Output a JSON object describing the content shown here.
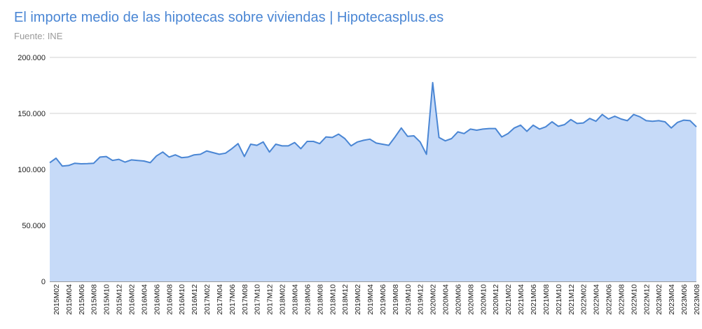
{
  "chart_data": {
    "type": "area",
    "title": "El importe medio de las hipotecas sobre viviendas | Hipotecasplus.es",
    "subtitle": "Fuente: INE",
    "xlabel": "",
    "ylabel": "",
    "ylim": [
      0,
      200000
    ],
    "grid": true,
    "legend": "none",
    "colors": {
      "title": "#4a86d4",
      "line": "#4a86d4",
      "fill": "#c6daf8",
      "grid": "#d0d0d0",
      "subtitle": "#9a9a9a"
    },
    "y_ticks": [
      "0",
      "50.000",
      "100.000",
      "150.000",
      "200.000"
    ],
    "y_tick_values": [
      0,
      50000,
      100000,
      150000,
      200000
    ],
    "x_tick_labels": [
      "2015M02",
      "2015M04",
      "2015M06",
      "2015M08",
      "2015M10",
      "2015M12",
      "2016M02",
      "2016M04",
      "2016M06",
      "2016M08",
      "2016M10",
      "2016M12",
      "2017M02",
      "2017M04",
      "2017M06",
      "2017M08",
      "2017M10",
      "2017M12",
      "2018M02",
      "2018M04",
      "2018M06",
      "2018M08",
      "2018M10",
      "2018M12",
      "2019M02",
      "2019M04",
      "2019M06",
      "2019M08",
      "2019M10",
      "2019M12",
      "2020M02",
      "2020M04",
      "2020M06",
      "2020M08",
      "2020M10",
      "2020M12",
      "2021M02",
      "2021M04",
      "2021M06",
      "2021M08",
      "2021M10",
      "2021M12",
      "2022M02",
      "2022M04",
      "2022M06",
      "2022M08",
      "2022M10",
      "2022M12",
      "2023M02",
      "2023M04",
      "2023M06",
      "2023M08"
    ],
    "x": [
      "2015M01",
      "2015M02",
      "2015M03",
      "2015M04",
      "2015M05",
      "2015M06",
      "2015M07",
      "2015M08",
      "2015M09",
      "2015M10",
      "2015M11",
      "2015M12",
      "2016M01",
      "2016M02",
      "2016M03",
      "2016M04",
      "2016M05",
      "2016M06",
      "2016M07",
      "2016M08",
      "2016M09",
      "2016M10",
      "2016M11",
      "2016M12",
      "2017M01",
      "2017M02",
      "2017M03",
      "2017M04",
      "2017M05",
      "2017M06",
      "2017M07",
      "2017M08",
      "2017M09",
      "2017M10",
      "2017M11",
      "2017M12",
      "2018M01",
      "2018M02",
      "2018M03",
      "2018M04",
      "2018M05",
      "2018M06",
      "2018M07",
      "2018M08",
      "2018M09",
      "2018M10",
      "2018M11",
      "2018M12",
      "2019M01",
      "2019M02",
      "2019M03",
      "2019M04",
      "2019M05",
      "2019M06",
      "2019M07",
      "2019M08",
      "2019M09",
      "2019M10",
      "2019M11",
      "2019M12",
      "2020M01",
      "2020M02",
      "2020M03",
      "2020M04",
      "2020M05",
      "2020M06",
      "2020M07",
      "2020M08",
      "2020M09",
      "2020M10",
      "2020M11",
      "2020M12",
      "2021M01",
      "2021M02",
      "2021M03",
      "2021M04",
      "2021M05",
      "2021M06",
      "2021M07",
      "2021M08",
      "2021M09",
      "2021M10",
      "2021M11",
      "2021M12",
      "2022M01",
      "2022M02",
      "2022M03",
      "2022M04",
      "2022M05",
      "2022M06",
      "2022M07",
      "2022M08",
      "2022M09",
      "2022M10",
      "2022M11",
      "2022M12",
      "2023M01",
      "2023M02",
      "2023M03",
      "2023M04",
      "2023M05",
      "2023M06",
      "2023M07",
      "2023M08"
    ],
    "series": [
      {
        "values": [
          106000,
          110000,
          103000,
          103500,
          105500,
          105000,
          105200,
          105500,
          111000,
          111500,
          108000,
          109000,
          106500,
          108500,
          108000,
          107500,
          106000,
          112000,
          115500,
          111000,
          113000,
          110500,
          111000,
          113000,
          113500,
          116500,
          115000,
          113500,
          114500,
          118500,
          123000,
          111500,
          122500,
          121500,
          124500,
          115500,
          122500,
          121000,
          121000,
          124000,
          118500,
          125000,
          125000,
          123000,
          129000,
          128500,
          131500,
          127500,
          121000,
          124500,
          126000,
          127000,
          123500,
          122500,
          121500,
          129000,
          137000,
          129500,
          130000,
          124500,
          113500,
          177500,
          128500,
          125500,
          127500,
          133500,
          132000,
          136000,
          135000,
          136000,
          136500,
          136500,
          129000,
          132000,
          137000,
          139500,
          134000,
          139500,
          136000,
          138000,
          142500,
          138500,
          140000,
          144500,
          141000,
          141500,
          145500,
          143000,
          149000,
          145000,
          147500,
          145000,
          143500,
          149000,
          147000,
          143500,
          143000,
          143500,
          142500,
          137000,
          142000,
          144000,
          143500,
          138000
        ]
      }
    ]
  }
}
